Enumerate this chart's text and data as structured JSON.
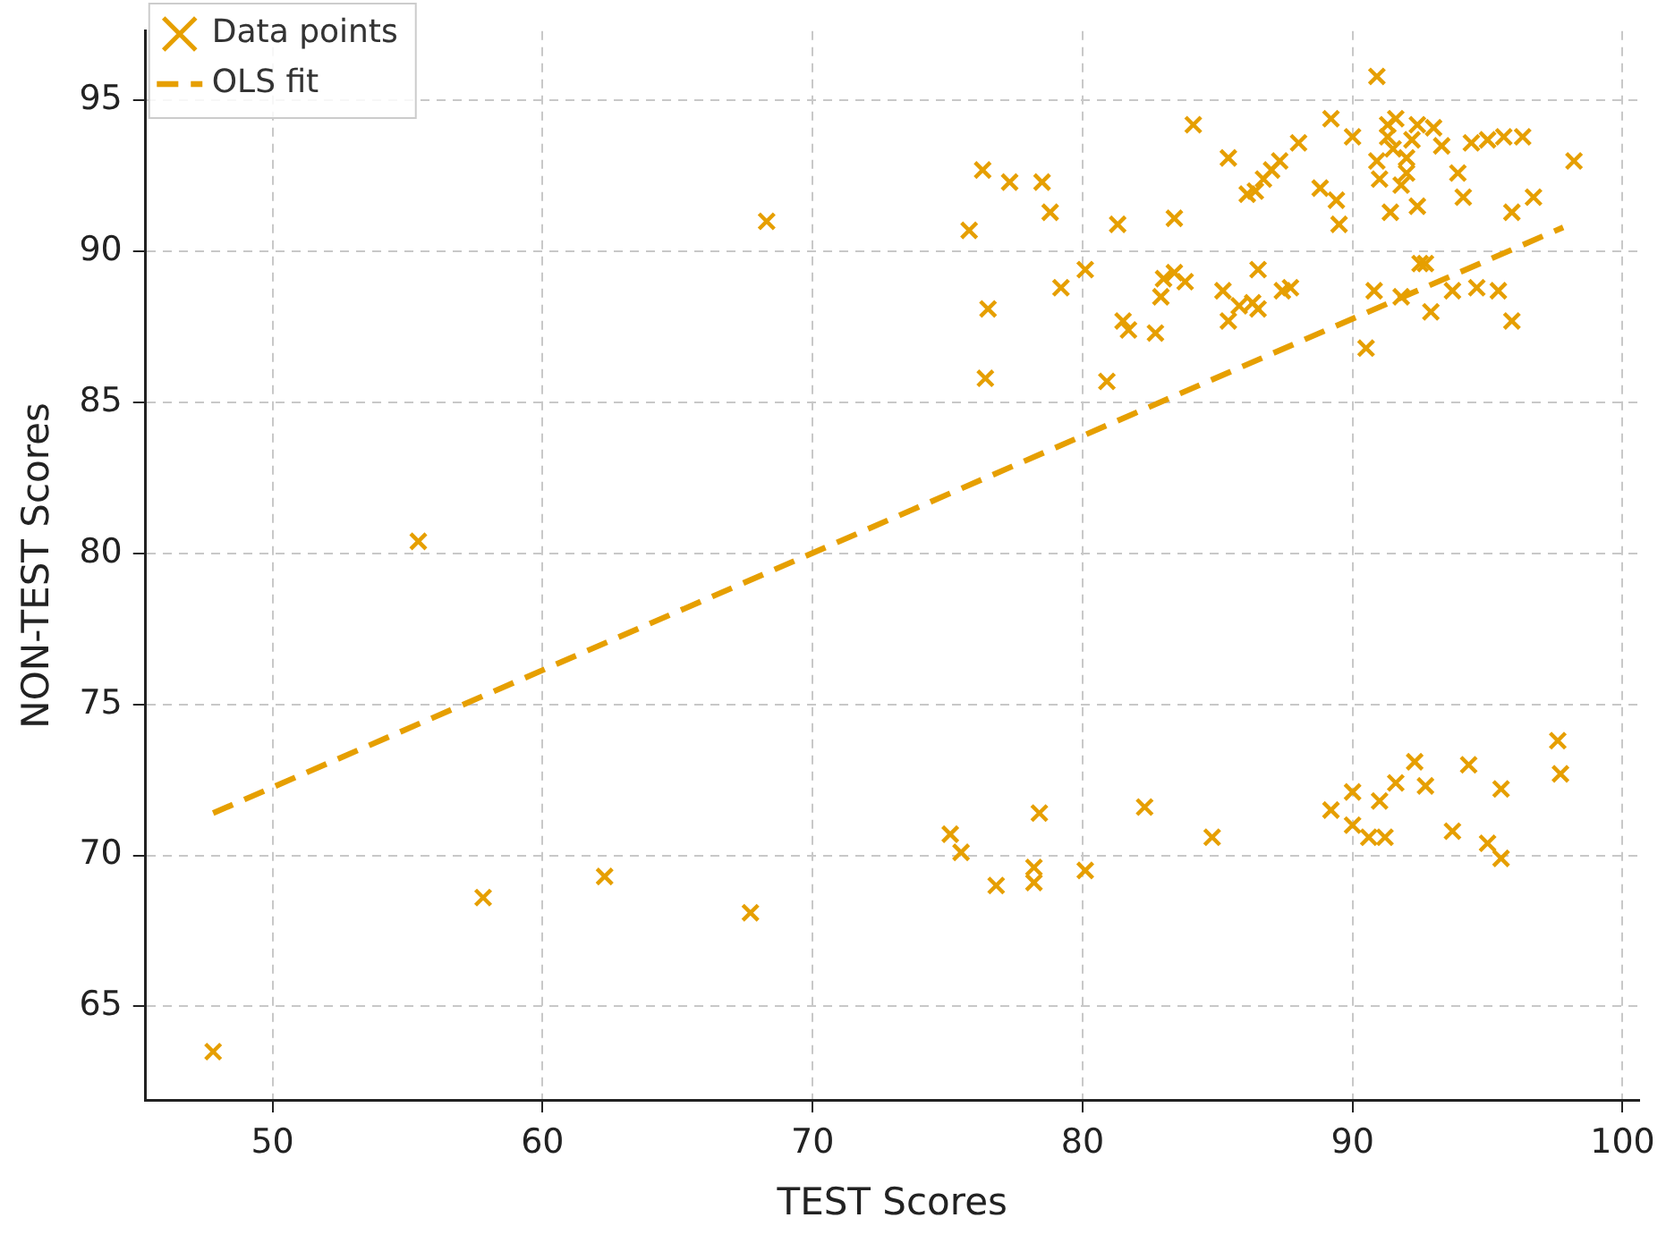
{
  "chart_data": {
    "type": "scatter",
    "xlabel": "TEST Scores",
    "ylabel": "NON-TEST Scores",
    "xlim": [
      45.3,
      100.6
    ],
    "ylim": [
      61.9,
      97.3
    ],
    "xticks": [
      50,
      60,
      70,
      80,
      90,
      100
    ],
    "yticks": [
      65,
      70,
      75,
      80,
      85,
      90,
      95
    ],
    "grid": true,
    "legend": "top left",
    "series": [
      {
        "name": "Data points",
        "type": "scatter",
        "marker": "cross",
        "color": "#e69f00",
        "x": [
          47.8,
          55.4,
          57.8,
          62.3,
          67.7,
          68.3,
          75.1,
          75.5,
          76.8,
          78.2,
          78.2,
          78.4,
          80.1,
          82.3,
          84.8,
          89.2,
          90.0,
          90.0,
          90.6,
          91.0,
          91.2,
          91.6,
          92.3,
          92.7,
          94.3,
          93.7,
          95.0,
          95.5,
          95.5,
          97.6,
          97.7,
          75.8,
          76.3,
          76.5,
          76.4,
          77.3,
          78.5,
          78.8,
          79.2,
          80.1,
          80.9,
          81.3,
          81.5,
          81.7,
          82.7,
          82.9,
          83.0,
          83.4,
          83.4,
          83.8,
          84.1,
          85.2,
          85.4,
          85.4,
          85.8,
          86.1,
          86.3,
          86.4,
          86.5,
          86.5,
          86.7,
          87.0,
          87.3,
          87.4,
          87.7,
          88.0,
          88.8,
          89.2,
          89.4,
          89.5,
          90.0,
          90.5,
          90.9,
          90.8,
          91.0,
          91.3,
          91.4,
          91.5,
          91.8,
          92.0,
          91.8,
          92.0,
          92.2,
          92.4,
          92.5,
          92.7,
          92.9,
          90.9,
          91.3,
          91.6,
          92.4,
          93.0,
          93.7,
          93.9,
          94.1,
          94.4,
          94.6,
          95.0,
          95.4,
          95.6,
          95.9,
          95.9,
          96.3,
          96.7,
          98.2,
          93.3
        ],
        "values": [
          63.5,
          80.4,
          68.6,
          69.3,
          68.1,
          91.0,
          70.7,
          70.1,
          69.0,
          69.6,
          69.1,
          71.4,
          69.5,
          71.6,
          70.6,
          71.5,
          72.1,
          71.0,
          70.6,
          71.8,
          70.6,
          72.4,
          73.1,
          72.3,
          73.0,
          70.8,
          70.4,
          69.9,
          72.2,
          73.8,
          72.7,
          90.7,
          92.7,
          88.1,
          85.8,
          92.3,
          92.3,
          91.3,
          88.8,
          89.4,
          85.7,
          90.9,
          87.7,
          87.4,
          87.3,
          88.5,
          89.1,
          91.1,
          89.3,
          89.0,
          94.2,
          88.7,
          87.7,
          93.1,
          88.2,
          91.9,
          88.3,
          92.0,
          88.1,
          89.4,
          92.4,
          92.7,
          93.0,
          88.7,
          88.8,
          93.6,
          92.1,
          94.4,
          91.7,
          90.9,
          93.8,
          86.8,
          95.8,
          88.7,
          92.4,
          93.8,
          91.3,
          93.4,
          88.5,
          93.1,
          92.2,
          92.6,
          93.7,
          91.5,
          89.6,
          89.6,
          88.0,
          93.0,
          94.2,
          94.4,
          94.2,
          94.1,
          88.7,
          92.6,
          91.8,
          93.6,
          88.8,
          93.7,
          88.7,
          93.8,
          87.7,
          91.3,
          93.8,
          91.8,
          93.0,
          93.5
        ]
      },
      {
        "name": "OLS fit",
        "type": "line",
        "marker": "none",
        "line_style": "dashed",
        "color": "#e69f00",
        "x": [
          47.8,
          97.8
        ],
        "values": [
          71.4,
          90.8
        ]
      }
    ]
  }
}
